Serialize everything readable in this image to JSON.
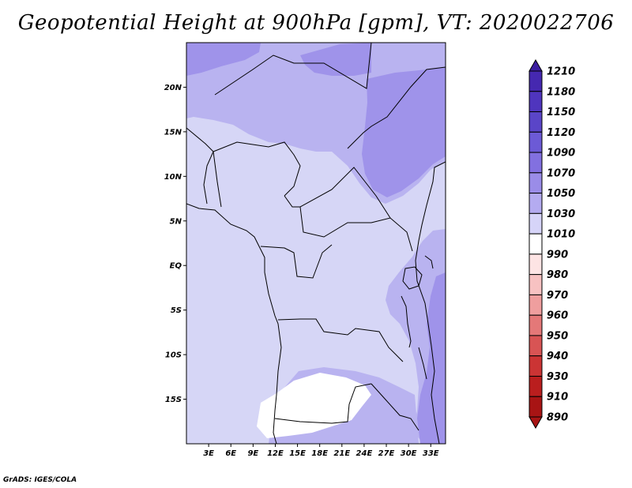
{
  "title": "Geopotential Height at 900hPa [gpm], VT: 2020022706",
  "credit": "GrADS: IGES/COLA",
  "map": {
    "variable": "Geopotential Height",
    "level": "900hPa",
    "units": "gpm",
    "valid_time": "2020022706",
    "lon_range": [
      0,
      35
    ],
    "lat_range": [
      -20,
      25
    ],
    "lat_ticks": [
      {
        "value": 20,
        "label": "20N"
      },
      {
        "value": 15,
        "label": "15N"
      },
      {
        "value": 10,
        "label": "10N"
      },
      {
        "value": 5,
        "label": "5N"
      },
      {
        "value": 0,
        "label": "EQ"
      },
      {
        "value": -5,
        "label": "5S"
      },
      {
        "value": -10,
        "label": "10S"
      },
      {
        "value": -15,
        "label": "15S"
      }
    ],
    "lon_ticks": [
      {
        "value": 3,
        "label": "3E"
      },
      {
        "value": 6,
        "label": "6E"
      },
      {
        "value": 9,
        "label": "9E"
      },
      {
        "value": 12,
        "label": "12E"
      },
      {
        "value": 15,
        "label": "15E"
      },
      {
        "value": 18,
        "label": "18E"
      },
      {
        "value": 21,
        "label": "21E"
      },
      {
        "value": 24,
        "label": "24E"
      },
      {
        "value": 27,
        "label": "27E"
      },
      {
        "value": 30,
        "label": "30E"
      },
      {
        "value": 33,
        "label": "33E"
      }
    ]
  },
  "colorbar": {
    "levels": [
      "1210",
      "1180",
      "1150",
      "1120",
      "1090",
      "1070",
      "1050",
      "1030",
      "1010",
      "990",
      "980",
      "970",
      "960",
      "950",
      "940",
      "930",
      "910",
      "890"
    ],
    "colors": [
      "#3c1ea0",
      "#4528b0",
      "#4f35be",
      "#5a45c8",
      "#6c5ad6",
      "#8270e0",
      "#9a8ce8",
      "#b4abf0",
      "#d6d4f8",
      "#ffffff",
      "#fde4e4",
      "#f7c2c2",
      "#ef9e9e",
      "#e47878",
      "#d85454",
      "#cb3434",
      "#ba1e1e",
      "#a81414"
    ]
  },
  "fills": {
    "level_1010": "#d6d6f6",
    "level_1030": "#b9b3f0",
    "level_1050": "#9f93ea",
    "level_990": "#ffffff"
  }
}
